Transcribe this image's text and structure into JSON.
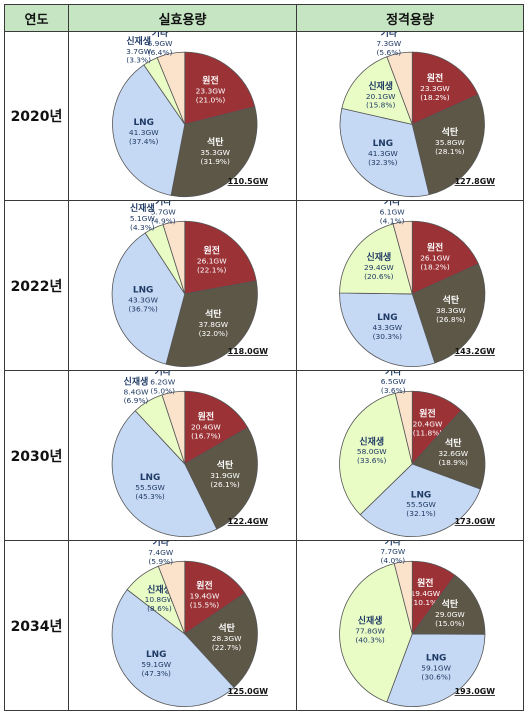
{
  "headers": {
    "year": "연도",
    "effective": "실효용량",
    "rated": "정격용량"
  },
  "colors": {
    "원전": "#9b3236",
    "석탄": "#5c5747",
    "LNG": "#c6d9f4",
    "신재생": "#e9fcc6",
    "기타": "#fbe3cb",
    "label_light": "#ffffff",
    "label_dark": "#1f3a64"
  },
  "chart_data": [
    {
      "type": "pie",
      "year": "2020년",
      "chart": "실효용량",
      "total": "110.5GW",
      "slices": [
        {
          "name": "원전",
          "gw": 23.3,
          "gw_text": "23.3GW",
          "pct_text": "(21.0%)"
        },
        {
          "name": "석탄",
          "gw": 35.3,
          "gw_text": "35.3GW",
          "pct_text": "(31.9%)"
        },
        {
          "name": "LNG",
          "gw": 41.3,
          "gw_text": "41.3GW",
          "pct_text": "(37.4%)"
        },
        {
          "name": "신재생",
          "gw": 3.7,
          "gw_text": "3.7GW",
          "pct_text": "(3.3%)"
        },
        {
          "name": "기타",
          "gw": 6.9,
          "gw_text": "6.9GW",
          "pct_text": "(6.4%)"
        }
      ]
    },
    {
      "type": "pie",
      "year": "2020년",
      "chart": "정격용량",
      "total": "127.8GW",
      "slices": [
        {
          "name": "원전",
          "gw": 23.3,
          "gw_text": "23.3GW",
          "pct_text": "(18.2%)"
        },
        {
          "name": "석탄",
          "gw": 35.8,
          "gw_text": "35.8GW",
          "pct_text": "(28.1%)"
        },
        {
          "name": "LNG",
          "gw": 41.3,
          "gw_text": "41.3GW",
          "pct_text": "(32.3%)"
        },
        {
          "name": "신재생",
          "gw": 20.1,
          "gw_text": "20.1GW",
          "pct_text": "(15.8%)"
        },
        {
          "name": "기타",
          "gw": 7.3,
          "gw_text": "7.3GW",
          "pct_text": "(5.6%)"
        }
      ]
    },
    {
      "type": "pie",
      "year": "2022년",
      "chart": "실효용량",
      "total": "118.0GW",
      "slices": [
        {
          "name": "원전",
          "gw": 26.1,
          "gw_text": "26.1GW",
          "pct_text": "(22.1%)"
        },
        {
          "name": "석탄",
          "gw": 37.8,
          "gw_text": "37.8GW",
          "pct_text": "(32.0%)"
        },
        {
          "name": "LNG",
          "gw": 43.3,
          "gw_text": "43.3GW",
          "pct_text": "(36.7%)"
        },
        {
          "name": "신재생",
          "gw": 5.1,
          "gw_text": "5.1GW",
          "pct_text": "(4.3%)"
        },
        {
          "name": "기타",
          "gw": 5.7,
          "gw_text": "5.7GW",
          "pct_text": "(4.9%)"
        }
      ]
    },
    {
      "type": "pie",
      "year": "2022년",
      "chart": "정격용량",
      "total": "143.2GW",
      "slices": [
        {
          "name": "원전",
          "gw": 26.1,
          "gw_text": "26.1GW",
          "pct_text": "(18.2%)"
        },
        {
          "name": "석탄",
          "gw": 38.3,
          "gw_text": "38.3GW",
          "pct_text": "(26.8%)"
        },
        {
          "name": "LNG",
          "gw": 43.3,
          "gw_text": "43.3GW",
          "pct_text": "(30.3%)"
        },
        {
          "name": "신재생",
          "gw": 29.4,
          "gw_text": "29.4GW",
          "pct_text": "(20.6%)"
        },
        {
          "name": "기타",
          "gw": 6.1,
          "gw_text": "6.1GW",
          "pct_text": "(4.1%)"
        }
      ]
    },
    {
      "type": "pie",
      "year": "2030년",
      "chart": "실효용량",
      "total": "122.4GW",
      "slices": [
        {
          "name": "원전",
          "gw": 20.4,
          "gw_text": "20.4GW",
          "pct_text": "(16.7%)"
        },
        {
          "name": "석탄",
          "gw": 31.9,
          "gw_text": "31.9GW",
          "pct_text": "(26.1%)"
        },
        {
          "name": "LNG",
          "gw": 55.5,
          "gw_text": "55.5GW",
          "pct_text": "(45.3%)"
        },
        {
          "name": "신재생",
          "gw": 8.4,
          "gw_text": "8.4GW",
          "pct_text": "(6.9%)"
        },
        {
          "name": "기타",
          "gw": 6.2,
          "gw_text": "6.2GW",
          "pct_text": "(5.0%)"
        }
      ]
    },
    {
      "type": "pie",
      "year": "2030년",
      "chart": "정격용량",
      "total": "173.0GW",
      "slices": [
        {
          "name": "원전",
          "gw": 20.4,
          "gw_text": "20.4GW",
          "pct_text": "(11.8%)"
        },
        {
          "name": "석탄",
          "gw": 32.6,
          "gw_text": "32.6GW",
          "pct_text": "(18.9%)"
        },
        {
          "name": "LNG",
          "gw": 55.5,
          "gw_text": "55.5GW",
          "pct_text": "(32.1%)"
        },
        {
          "name": "신재생",
          "gw": 58.0,
          "gw_text": "58.0GW",
          "pct_text": "(33.6%)"
        },
        {
          "name": "기타",
          "gw": 6.5,
          "gw_text": "6.5GW",
          "pct_text": "(3.6%)"
        }
      ]
    },
    {
      "type": "pie",
      "year": "2034년",
      "chart": "실효용량",
      "total": "125.0GW",
      "slices": [
        {
          "name": "원전",
          "gw": 19.4,
          "gw_text": "19.4GW",
          "pct_text": "(15.5%)"
        },
        {
          "name": "석탄",
          "gw": 28.3,
          "gw_text": "28.3GW",
          "pct_text": "(22.7%)"
        },
        {
          "name": "LNG",
          "gw": 59.1,
          "gw_text": "59.1GW",
          "pct_text": "(47.3%)"
        },
        {
          "name": "신재생",
          "gw": 10.8,
          "gw_text": "10.8GW",
          "pct_text": "(8.6%)"
        },
        {
          "name": "기타",
          "gw": 7.4,
          "gw_text": "7.4GW",
          "pct_text": "(5.9%)"
        }
      ]
    },
    {
      "type": "pie",
      "year": "2034년",
      "chart": "정격용량",
      "total": "193.0GW",
      "slices": [
        {
          "name": "원전",
          "gw": 19.4,
          "gw_text": "19.4GW",
          "pct_text": "(10.1%)"
        },
        {
          "name": "석탄",
          "gw": 29.0,
          "gw_text": "29.0GW",
          "pct_text": "(15.0%)"
        },
        {
          "name": "LNG",
          "gw": 59.1,
          "gw_text": "59.1GW",
          "pct_text": "(30.6%)"
        },
        {
          "name": "신재생",
          "gw": 77.8,
          "gw_text": "77.8GW",
          "pct_text": "(40.3%)"
        },
        {
          "name": "기타",
          "gw": 7.7,
          "gw_text": "7.7GW",
          "pct_text": "(4.0%)"
        }
      ]
    }
  ]
}
